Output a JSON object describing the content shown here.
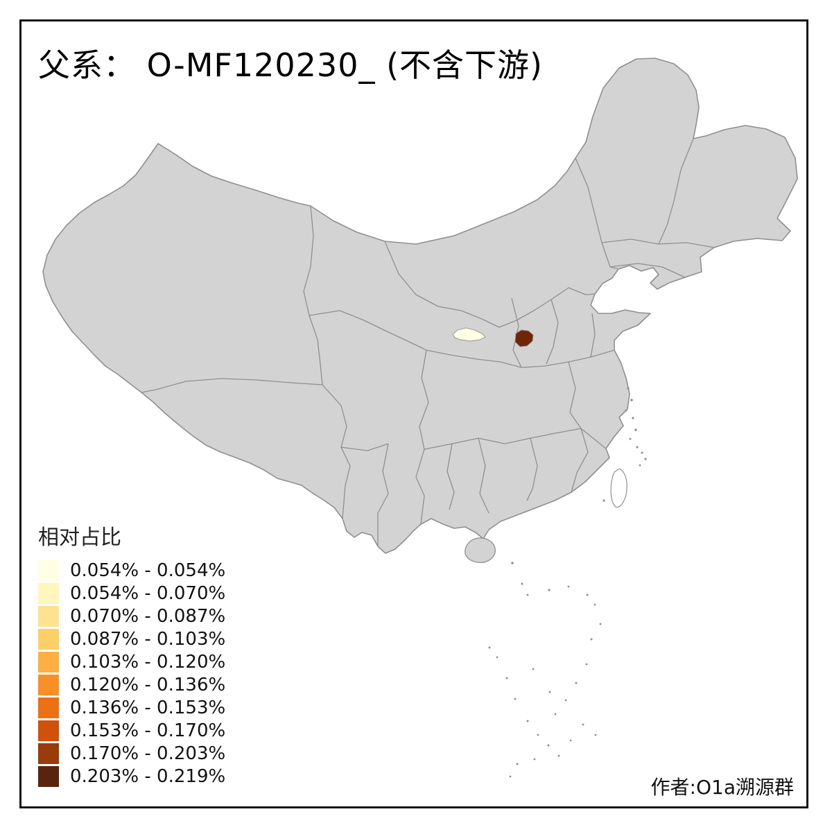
{
  "title": "父系：  O-MF120230_ (不含下游)",
  "legend": {
    "title": "相对占比",
    "items": [
      {
        "label": "0.054% - 0.054%",
        "color": "#FFFFE5"
      },
      {
        "label": "0.054% - 0.070%",
        "color": "#FFF6BB"
      },
      {
        "label": "0.070% - 0.087%",
        "color": "#FEE28F"
      },
      {
        "label": "0.087% - 0.103%",
        "color": "#FECF66"
      },
      {
        "label": "0.103% - 0.120%",
        "color": "#FEAF42"
      },
      {
        "label": "0.120% - 0.136%",
        "color": "#F98F26"
      },
      {
        "label": "0.136% - 0.153%",
        "color": "#EC7014"
      },
      {
        "label": "0.153% - 0.170%",
        "color": "#D1510A"
      },
      {
        "label": "0.170% - 0.203%",
        "color": "#9A3C09"
      },
      {
        "label": "0.203% - 0.219%",
        "color": "#58250C"
      }
    ]
  },
  "author": "作者:O1a溯源群",
  "map": {
    "base_fill": "#D3D3D3",
    "border_color": "#8F8F8F",
    "background": "#FFFFFF",
    "frame_color": "#111111",
    "taiwan_fill": "#FFFFFF",
    "regions": [
      {
        "id": "region-low",
        "bin": "0.054% - 0.054%",
        "color": "#FFFFE5"
      },
      {
        "id": "region-high",
        "bin": "0.203% - 0.219%",
        "color": "#6E2606"
      }
    ]
  }
}
